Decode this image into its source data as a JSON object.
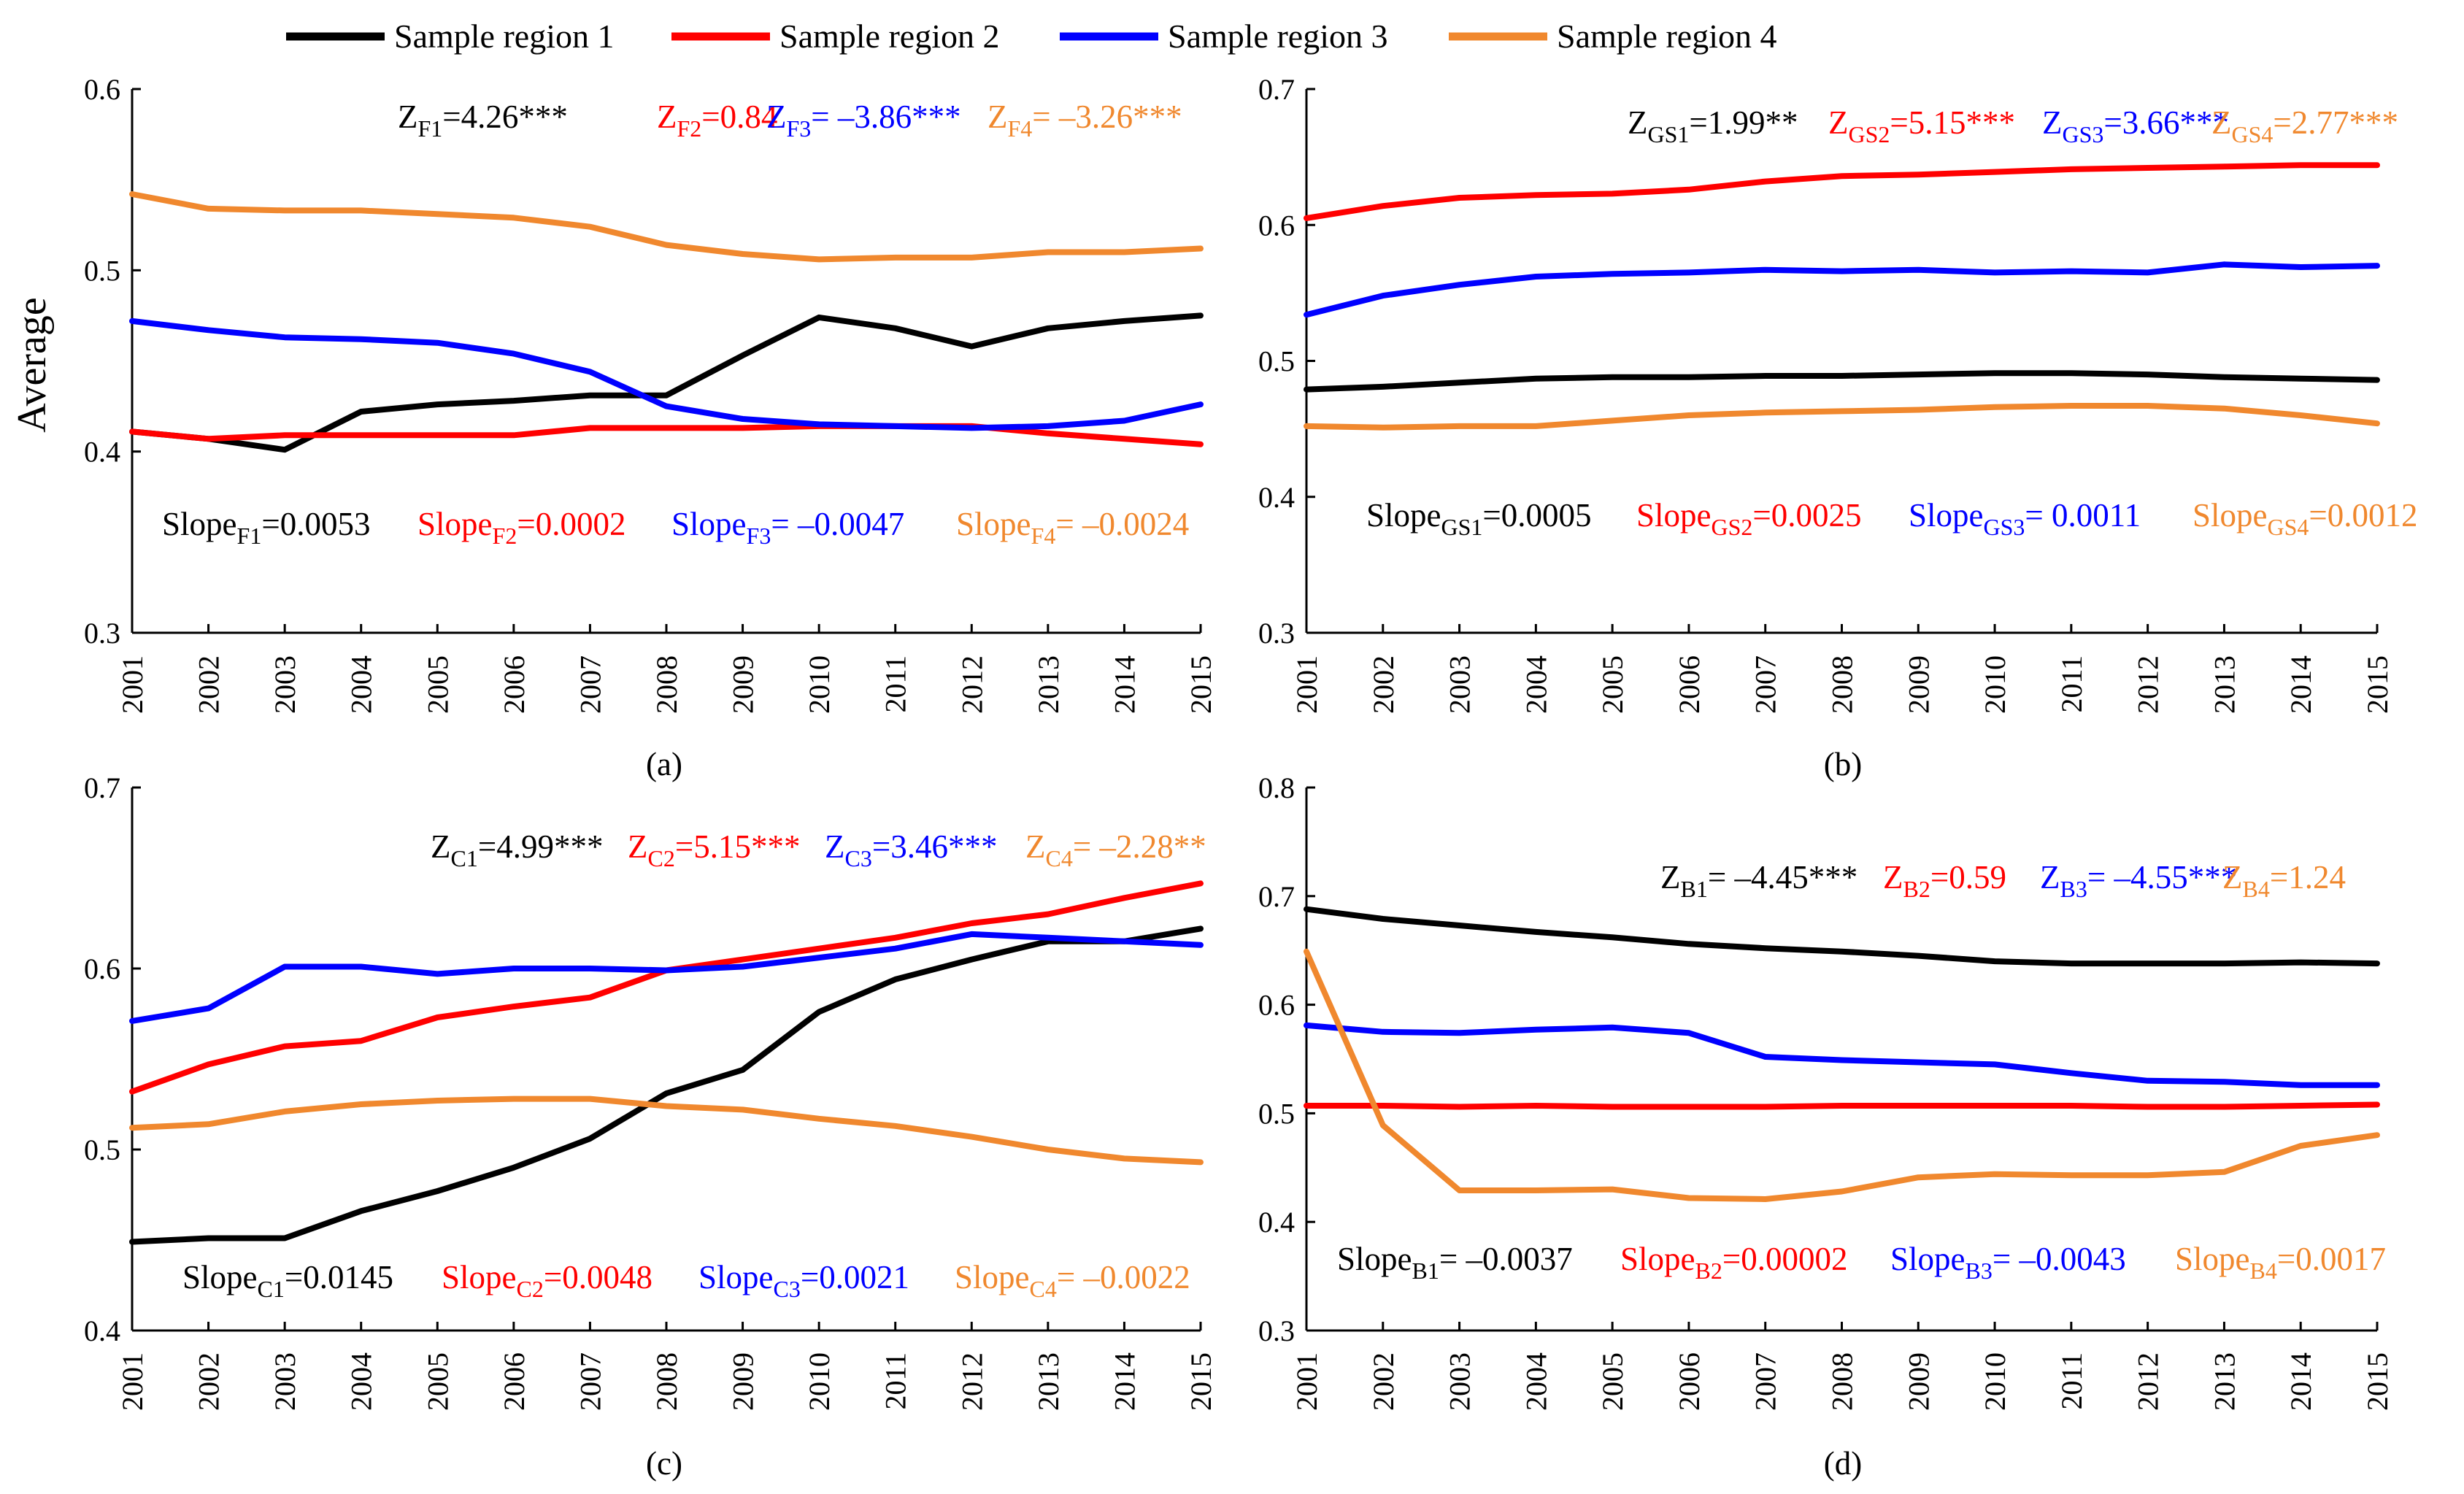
{
  "colors": {
    "region1": "#000000",
    "region2": "#ff0000",
    "region3": "#0000ff",
    "region4": "#f0882e"
  },
  "legend": {
    "entries": [
      "Sample region 1",
      "Sample region 2",
      "Sample region 3",
      "Sample region 4"
    ]
  },
  "chart_data": [
    {
      "type": "line",
      "panel_label": "(a)",
      "ylabel": "Average",
      "x": [
        2001,
        2002,
        2003,
        2004,
        2005,
        2006,
        2007,
        2008,
        2009,
        2010,
        2011,
        2012,
        2013,
        2014,
        2015
      ],
      "x_tick_labels": [
        "2001",
        "2002",
        "2003",
        "2004",
        "2005",
        "2006",
        "2007",
        "2008",
        "2009",
        "2010",
        "2011",
        "2012",
        "2013",
        "2014",
        "2015"
      ],
      "ylim": [
        0.3,
        0.6
      ],
      "y_ticks": [
        0.3,
        0.4,
        0.5,
        0.6
      ],
      "y_tick_labels": [
        "0.3",
        "0.4",
        "0.5",
        "0.6"
      ],
      "series": [
        {
          "name": "Sample region 1",
          "values": [
            0.411,
            0.407,
            0.401,
            0.422,
            0.426,
            0.428,
            0.431,
            0.431,
            0.453,
            0.474,
            0.468,
            0.458,
            0.468,
            0.472,
            0.475
          ]
        },
        {
          "name": "Sample region 2",
          "values": [
            0.411,
            0.407,
            0.409,
            0.409,
            0.409,
            0.409,
            0.413,
            0.413,
            0.413,
            0.414,
            0.414,
            0.414,
            0.41,
            0.407,
            0.404
          ]
        },
        {
          "name": "Sample region 3",
          "values": [
            0.472,
            0.467,
            0.463,
            0.462,
            0.46,
            0.454,
            0.444,
            0.425,
            0.418,
            0.415,
            0.414,
            0.413,
            0.414,
            0.417,
            0.426
          ]
        },
        {
          "name": "Sample region 4",
          "values": [
            0.542,
            0.534,
            0.533,
            0.533,
            0.531,
            0.529,
            0.524,
            0.514,
            0.509,
            0.506,
            0.507,
            0.507,
            0.51,
            0.51,
            0.512
          ]
        }
      ],
      "z_annotations": [
        {
          "pre": "Z",
          "sub": "F1",
          "post": "=4.26***"
        },
        {
          "pre": "Z",
          "sub": "F2",
          "post": "=0.84"
        },
        {
          "pre": "Z",
          "sub": "F3",
          "post": "= –3.86***"
        },
        {
          "pre": "Z",
          "sub": "F4",
          "post": "= –3.26***"
        }
      ],
      "slope_annotations": [
        {
          "pre": "Slope",
          "sub": "F1",
          "post": "=0.0053"
        },
        {
          "pre": "Slope",
          "sub": "F2",
          "post": "=0.0002"
        },
        {
          "pre": "Slope",
          "sub": "F3",
          "post": "= –0.0047"
        },
        {
          "pre": "Slope",
          "sub": "F4",
          "post": "= –0.0024"
        }
      ]
    },
    {
      "type": "line",
      "panel_label": "(b)",
      "ylabel": "",
      "x": [
        2001,
        2002,
        2003,
        2004,
        2005,
        2006,
        2007,
        2008,
        2009,
        2010,
        2011,
        2012,
        2013,
        2014,
        2015
      ],
      "x_tick_labels": [
        "2001",
        "2002",
        "2003",
        "2004",
        "2005",
        "2006",
        "2007",
        "2008",
        "2009",
        "2010",
        "2011",
        "2012",
        "2013",
        "2014",
        "2015"
      ],
      "ylim": [
        0.3,
        0.7
      ],
      "y_ticks": [
        0.3,
        0.4,
        0.5,
        0.6,
        0.7
      ],
      "y_tick_labels": [
        "0.3",
        "0.4",
        "0.5",
        "0.6",
        "0.7"
      ],
      "series": [
        {
          "name": "Sample region 1",
          "values": [
            0.479,
            0.481,
            0.484,
            0.487,
            0.488,
            0.488,
            0.489,
            0.489,
            0.49,
            0.491,
            0.491,
            0.49,
            0.488,
            0.487,
            0.486
          ]
        },
        {
          "name": "Sample region 2",
          "values": [
            0.605,
            0.614,
            0.62,
            0.622,
            0.623,
            0.626,
            0.632,
            0.636,
            0.637,
            0.639,
            0.641,
            0.642,
            0.643,
            0.644,
            0.644
          ]
        },
        {
          "name": "Sample region 3",
          "values": [
            0.534,
            0.548,
            0.556,
            0.562,
            0.564,
            0.565,
            0.567,
            0.566,
            0.567,
            0.565,
            0.566,
            0.565,
            0.571,
            0.569,
            0.57
          ]
        },
        {
          "name": "Sample region 4",
          "values": [
            0.452,
            0.451,
            0.452,
            0.452,
            0.456,
            0.46,
            0.462,
            0.463,
            0.464,
            0.466,
            0.467,
            0.467,
            0.465,
            0.46,
            0.454
          ]
        }
      ],
      "z_annotations": [
        {
          "pre": "Z",
          "sub": "GS1",
          "post": "=1.99**"
        },
        {
          "pre": "Z",
          "sub": "GS2",
          "post": "=5.15***"
        },
        {
          "pre": "Z",
          "sub": "GS3",
          "post": "=3.66***"
        },
        {
          "pre": "Z",
          "sub": "GS4",
          "post": "=2.77***"
        }
      ],
      "slope_annotations": [
        {
          "pre": "Slope",
          "sub": "GS1",
          "post": "=0.0005"
        },
        {
          "pre": "Slope",
          "sub": "GS2",
          "post": "=0.0025"
        },
        {
          "pre": "Slope",
          "sub": "GS3",
          "post": "= 0.0011"
        },
        {
          "pre": "Slope",
          "sub": "GS4",
          "post": "=0.0012"
        }
      ]
    },
    {
      "type": "line",
      "panel_label": "(c)",
      "ylabel": "",
      "x": [
        2001,
        2002,
        2003,
        2004,
        2005,
        2006,
        2007,
        2008,
        2009,
        2010,
        2011,
        2012,
        2013,
        2014,
        2015
      ],
      "x_tick_labels": [
        "2001",
        "2002",
        "2003",
        "2004",
        "2005",
        "2006",
        "2007",
        "2008",
        "2009",
        "2010",
        "2011",
        "2012",
        "2013",
        "2014",
        "2015"
      ],
      "ylim": [
        0.4,
        0.7
      ],
      "y_ticks": [
        0.4,
        0.5,
        0.6,
        0.7
      ],
      "y_tick_labels": [
        "0.4",
        "0.5",
        "0.6",
        "0.7"
      ],
      "series": [
        {
          "name": "Sample region 1",
          "values": [
            0.449,
            0.451,
            0.451,
            0.466,
            0.477,
            0.49,
            0.506,
            0.531,
            0.544,
            0.576,
            0.594,
            0.605,
            0.615,
            0.615,
            0.622
          ]
        },
        {
          "name": "Sample region 2",
          "values": [
            0.532,
            0.547,
            0.557,
            0.56,
            0.573,
            0.579,
            0.584,
            0.599,
            0.605,
            0.611,
            0.617,
            0.625,
            0.63,
            0.639,
            0.647
          ]
        },
        {
          "name": "Sample region 3",
          "values": [
            0.571,
            0.578,
            0.601,
            0.601,
            0.597,
            0.6,
            0.6,
            0.599,
            0.601,
            0.606,
            0.611,
            0.619,
            0.617,
            0.615,
            0.613
          ]
        },
        {
          "name": "Sample region 4",
          "values": [
            0.512,
            0.514,
            0.521,
            0.525,
            0.527,
            0.528,
            0.528,
            0.524,
            0.522,
            0.517,
            0.513,
            0.507,
            0.5,
            0.495,
            0.493
          ]
        }
      ],
      "z_annotations": [
        {
          "pre": "Z",
          "sub": "C1",
          "post": "=4.99***"
        },
        {
          "pre": "Z",
          "sub": "C2",
          "post": "=5.15***"
        },
        {
          "pre": "Z",
          "sub": "C3",
          "post": "=3.46***"
        },
        {
          "pre": "Z",
          "sub": "C4",
          "post": "= –2.28**"
        }
      ],
      "slope_annotations": [
        {
          "pre": "Slope",
          "sub": "C1",
          "post": "=0.0145"
        },
        {
          "pre": "Slope",
          "sub": "C2",
          "post": "=0.0048"
        },
        {
          "pre": "Slope",
          "sub": "C3",
          "post": "=0.0021"
        },
        {
          "pre": "Slope",
          "sub": "C4",
          "post": "= –0.0022"
        }
      ]
    },
    {
      "type": "line",
      "panel_label": "(d)",
      "ylabel": "",
      "x": [
        2001,
        2002,
        2003,
        2004,
        2005,
        2006,
        2007,
        2008,
        2009,
        2010,
        2011,
        2012,
        2013,
        2014,
        2015
      ],
      "x_tick_labels": [
        "2001",
        "2002",
        "2003",
        "2004",
        "2005",
        "2006",
        "2007",
        "2008",
        "2009",
        "2010",
        "2011",
        "2012",
        "2013",
        "2014",
        "2015"
      ],
      "ylim": [
        0.3,
        0.8
      ],
      "y_ticks": [
        0.3,
        0.4,
        0.5,
        0.6,
        0.7,
        0.8
      ],
      "y_tick_labels": [
        "0.3",
        "0.4",
        "0.5",
        "0.6",
        "0.7",
        "0.8"
      ],
      "series": [
        {
          "name": "Sample region 1",
          "values": [
            0.688,
            0.679,
            0.673,
            0.667,
            0.662,
            0.656,
            0.652,
            0.649,
            0.645,
            0.64,
            0.638,
            0.638,
            0.638,
            0.639,
            0.638
          ]
        },
        {
          "name": "Sample region 2",
          "values": [
            0.507,
            0.507,
            0.506,
            0.507,
            0.506,
            0.506,
            0.506,
            0.507,
            0.507,
            0.507,
            0.507,
            0.506,
            0.506,
            0.507,
            0.508
          ]
        },
        {
          "name": "Sample region 3",
          "values": [
            0.581,
            0.575,
            0.574,
            0.577,
            0.579,
            0.574,
            0.552,
            0.549,
            0.547,
            0.545,
            0.537,
            0.53,
            0.529,
            0.526,
            0.526
          ]
        },
        {
          "name": "Sample region 4",
          "values": [
            0.649,
            0.489,
            0.429,
            0.429,
            0.43,
            0.422,
            0.421,
            0.428,
            0.441,
            0.444,
            0.443,
            0.443,
            0.446,
            0.47,
            0.48
          ]
        }
      ],
      "z_annotations": [
        {
          "pre": "Z",
          "sub": "B1",
          "post": "= –4.45***"
        },
        {
          "pre": "Z",
          "sub": "B2",
          "post": "=0.59"
        },
        {
          "pre": "Z",
          "sub": "B3",
          "post": "= –4.55***"
        },
        {
          "pre": "Z",
          "sub": "B4",
          "post": "=1.24"
        }
      ],
      "slope_annotations": [
        {
          "pre": "Slope",
          "sub": "B1",
          "post": "= –0.0037"
        },
        {
          "pre": "Slope",
          "sub": "B2",
          "post": "=0.00002"
        },
        {
          "pre": "Slope",
          "sub": "B3",
          "post": "= –0.0043"
        },
        {
          "pre": "Slope",
          "sub": "B4",
          "post": "=0.0017"
        }
      ]
    }
  ]
}
